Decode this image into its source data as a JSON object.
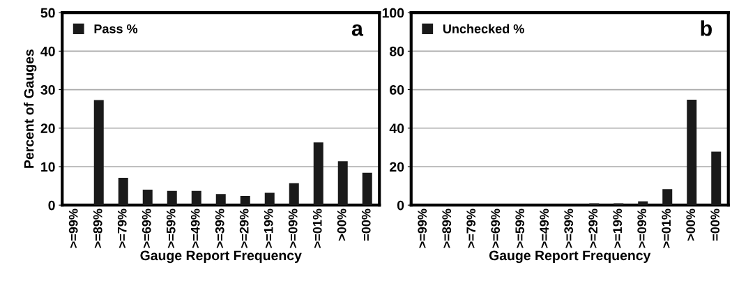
{
  "chart_data": [
    {
      "type": "bar",
      "xlabel": "Gauge Report Frequency",
      "ylabel": "Percent of Gauges",
      "annotations": [
        "a"
      ],
      "categories": [
        ">=99%",
        ">=89%",
        ">=79%",
        ">=69%",
        ">=59%",
        ">=49%",
        ">=39%",
        ">=29%",
        ">=19%",
        ">=09%",
        ">=01%",
        ">00%",
        "=00%"
      ],
      "series": [
        {
          "name": "Pass %",
          "color": "#1a1a1a",
          "values": [
            0,
            27.3,
            7.1,
            4.0,
            3.7,
            3.7,
            2.9,
            2.4,
            3.2,
            5.7,
            16.3,
            11.4,
            8.4
          ]
        }
      ],
      "ylim": [
        0,
        50
      ],
      "yticks": [
        0,
        10,
        20,
        30,
        40,
        50
      ],
      "grid": "y",
      "legend": "top left"
    },
    {
      "type": "bar",
      "xlabel": "Gauge Report Frequency",
      "annotations": [
        "b"
      ],
      "categories": [
        ">=99%",
        ">=89%",
        ">=79%",
        ">=69%",
        ">=59%",
        ">=49%",
        ">=39%",
        ">=29%",
        ">=19%",
        ">=09%",
        ">=01%",
        ">00%",
        "=00%"
      ],
      "series": [
        {
          "name": "Unchecked %",
          "color": "#1a1a1a",
          "values": [
            0,
            0,
            0,
            0,
            0,
            0,
            0,
            1.0,
            1.0,
            2.0,
            8.3,
            54.8,
            27.8
          ]
        }
      ],
      "ylim": [
        0,
        100
      ],
      "yticks": [
        0,
        20,
        40,
        60,
        80,
        100
      ],
      "grid": "y",
      "legend": "top left"
    }
  ]
}
